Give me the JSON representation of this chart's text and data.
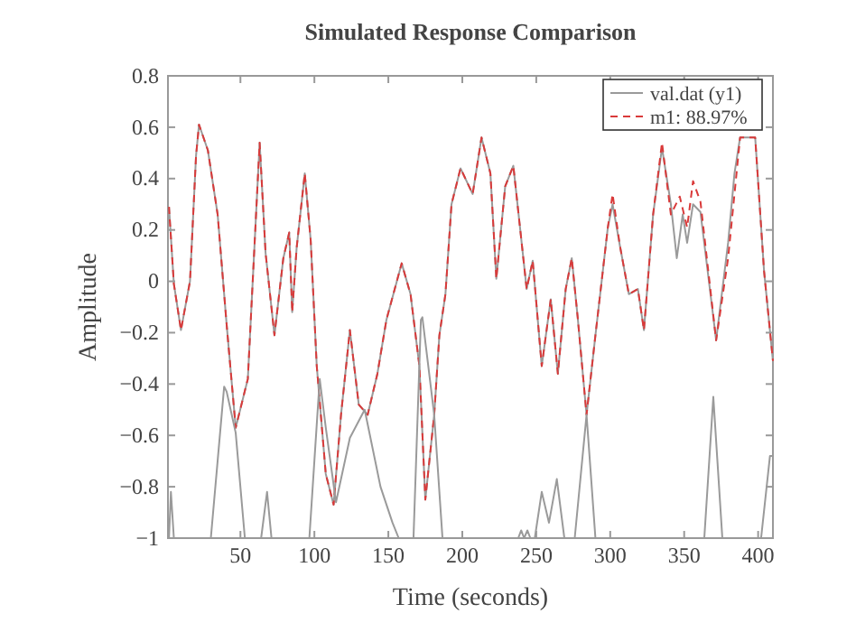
{
  "chart_data": {
    "type": "line",
    "title": "Simulated Response Comparison",
    "xlabel": "Time (seconds)",
    "ylabel": "Amplitude",
    "xlim": [
      1,
      410
    ],
    "xticks": [
      50,
      100,
      150,
      200,
      250,
      300,
      350,
      400
    ],
    "ylim": [
      -1,
      0.8
    ],
    "yticks": [
      {
        "value": -1,
        "label": "−1"
      },
      {
        "value": -0.8,
        "label": "−0.8"
      },
      {
        "value": -0.6,
        "label": "−0.6"
      },
      {
        "value": -0.4,
        "label": "−0.4"
      },
      {
        "value": -0.2,
        "label": "−0.2"
      },
      0,
      0.2,
      0.4,
      0.6,
      0.8
    ],
    "grid": false,
    "legend": "top right",
    "marker": "none",
    "series": [
      {
        "name": "val.dat (y1)",
        "color": "#9a9a9a",
        "line_style": "solid",
        "x": [
          1.7,
          5,
          9.8,
          15.9,
          20,
          22,
          28,
          34.6,
          40.7,
          46.8,
          55,
          63,
          67,
          73,
          79,
          83,
          85,
          88,
          93.5,
          97.5,
          101.6,
          107.7,
          113,
          118,
          124,
          130,
          136,
          142.6,
          148.7,
          159,
          165,
          171,
          175,
          181,
          184.5,
          188.6,
          192.7,
          198.8,
          207,
          213,
          219,
          223,
          229,
          234.5,
          243.5,
          247.6,
          253.7,
          259.8,
          264.6,
          269.9,
          274,
          278,
          284,
          290,
          298.4,
          301.6,
          306.5,
          312.6,
          318.7,
          322.8,
          329,
          335,
          341,
          345,
          349,
          352,
          356,
          361,
          371.6,
          379.7,
          384,
          387.8,
          398,
          404,
          410
        ],
        "values": [
          0.29,
          -0.01,
          -0.19,
          0,
          0.49,
          0.61,
          0.51,
          0.26,
          -0.17,
          -0.57,
          -0.38,
          0.54,
          0.11,
          -0.21,
          0.09,
          0.19,
          -0.12,
          0.13,
          0.42,
          0.16,
          -0.33,
          -0.75,
          -0.87,
          -0.52,
          -0.19,
          -0.48,
          -0.52,
          -0.36,
          -0.15,
          0.07,
          -0.05,
          -0.33,
          -0.85,
          -0.52,
          -0.21,
          -0.05,
          0.3,
          0.44,
          0.34,
          0.56,
          0.42,
          0.01,
          0.37,
          0.45,
          -0.03,
          0.08,
          -0.33,
          -0.07,
          -0.36,
          -0.03,
          0.09,
          -0.14,
          -0.52,
          -0.21,
          0.21,
          0.3,
          0.14,
          -0.05,
          -0.03,
          -0.19,
          0.26,
          0.52,
          0.3,
          0.09,
          0.26,
          0.15,
          0.3,
          0.27,
          -0.23,
          0.15,
          0.42,
          0.56,
          0.56,
          0.04,
          -0.31
        ]
      },
      {
        "name": "m1: 88.97%",
        "color": "#d93a3a",
        "line_style": "dashed",
        "x": [
          1.7,
          5,
          9.8,
          15.9,
          20,
          22,
          28,
          34.6,
          40.7,
          46.8,
          55,
          63,
          67,
          73,
          79,
          83,
          85,
          88,
          93.5,
          97.5,
          101.6,
          107.7,
          113,
          118,
          124,
          130,
          136,
          142.6,
          148.7,
          159,
          165,
          171,
          175,
          181,
          184.5,
          188.6,
          192.7,
          198.8,
          207,
          213,
          219,
          223,
          229,
          234.5,
          243.5,
          247.6,
          253.7,
          259.8,
          264.6,
          269.9,
          274,
          278,
          284,
          290,
          298.4,
          301.6,
          306.5,
          312.6,
          318.7,
          322.8,
          329,
          335,
          341,
          347,
          352,
          356,
          361,
          371.6,
          379.7,
          387.8,
          398,
          404,
          410
        ],
        "values": [
          0.29,
          -0.01,
          -0.19,
          0,
          0.49,
          0.61,
          0.51,
          0.26,
          -0.17,
          -0.57,
          -0.38,
          0.54,
          0.11,
          -0.21,
          0.09,
          0.19,
          -0.12,
          0.13,
          0.42,
          0.16,
          -0.33,
          -0.75,
          -0.87,
          -0.52,
          -0.19,
          -0.48,
          -0.52,
          -0.36,
          -0.15,
          0.07,
          -0.05,
          -0.33,
          -0.85,
          -0.52,
          -0.21,
          -0.05,
          0.3,
          0.44,
          0.34,
          0.56,
          0.42,
          0.01,
          0.37,
          0.45,
          -0.03,
          0.08,
          -0.33,
          -0.07,
          -0.36,
          -0.03,
          0.09,
          -0.14,
          -0.52,
          -0.21,
          0.21,
          0.34,
          0.14,
          -0.05,
          -0.03,
          -0.19,
          0.26,
          0.54,
          0.26,
          0.33,
          0.21,
          0.39,
          0.31,
          -0.23,
          0.09,
          0.56,
          0.56,
          0.04,
          -0.31
        ]
      },
      {
        "color": "#9a9a9a",
        "line_style": "solid",
        "x": [
          1.7,
          3,
          5,
          6,
          30,
          39,
          40.7,
          46.8,
          53,
          54,
          64,
          68,
          71,
          72,
          96.6,
          103.6,
          107.7,
          114.6,
          124,
          134,
          144.7,
          152.8,
          157,
          158,
          167,
          172,
          173,
          181,
          186.6,
          187,
          237.8,
          239.8,
          241.8,
          244,
          246,
          249,
          253.7,
          258.6,
          263.9,
          269,
          270,
          276,
          284,
          290,
          291,
          363.6,
          369.7,
          375.8,
          376,
          402,
          408,
          410
        ],
        "values": [
          -1,
          -0.82,
          -1,
          null,
          -1,
          -0.41,
          -0.43,
          -0.59,
          -1,
          null,
          -1,
          -0.82,
          -1,
          null,
          -1,
          -0.38,
          -0.57,
          -0.86,
          -0.61,
          -0.5,
          -0.8,
          -0.94,
          -1,
          null,
          -1,
          -0.15,
          -0.14,
          -0.52,
          -1,
          null,
          -1,
          -0.97,
          -1,
          -0.97,
          -1,
          -1,
          -0.82,
          -0.94,
          -0.77,
          -1,
          null,
          -1,
          -0.52,
          -1,
          null,
          -1,
          -0.45,
          -1,
          null,
          -1,
          -0.68,
          -0.68
        ]
      }
    ]
  }
}
